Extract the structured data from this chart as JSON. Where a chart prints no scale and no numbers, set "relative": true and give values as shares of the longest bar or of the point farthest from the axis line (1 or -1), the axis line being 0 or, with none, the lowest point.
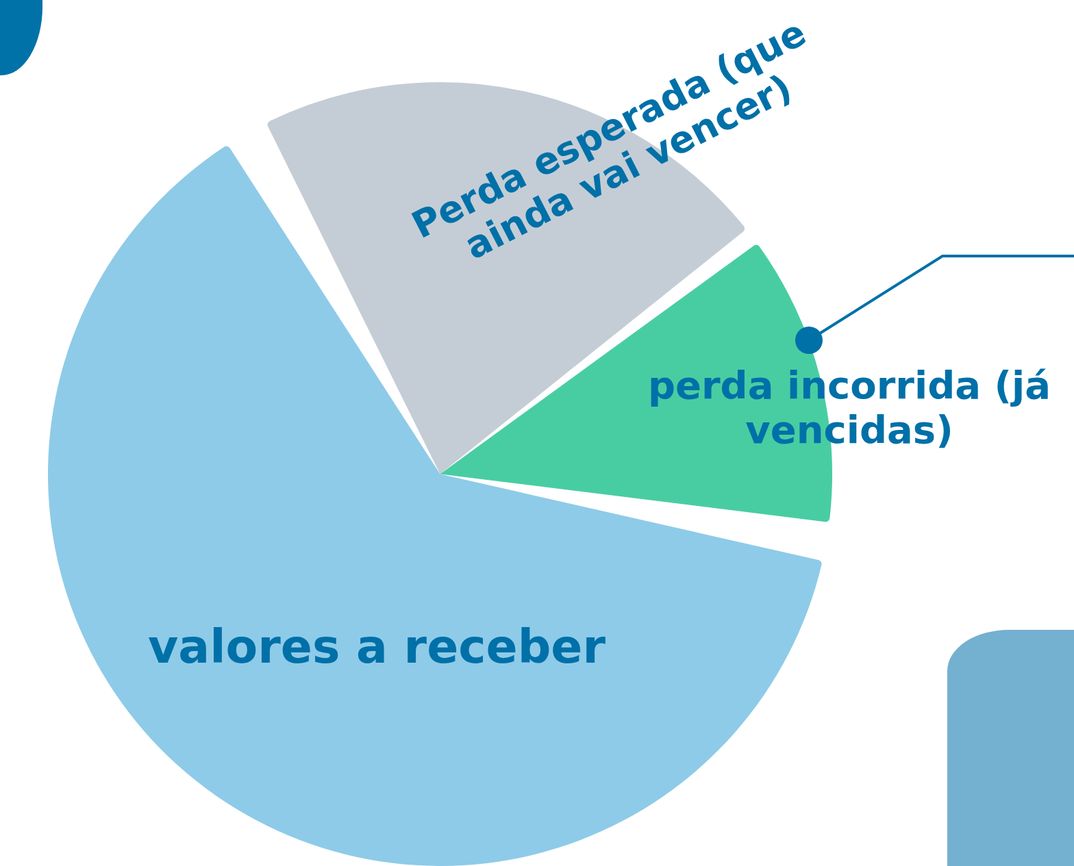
{
  "chart_data": {
    "type": "pie",
    "relative": true,
    "categories": [
      "Perda esperada (que ainda vai vencer)",
      "perda incorrida (já vencidas)",
      "valores a receber"
    ],
    "values": [
      22.5,
      12.5,
      65
    ],
    "colors": [
      "#c4cdd5",
      "#48cda2",
      "#8ecbe8"
    ],
    "legend": false
  }
}
